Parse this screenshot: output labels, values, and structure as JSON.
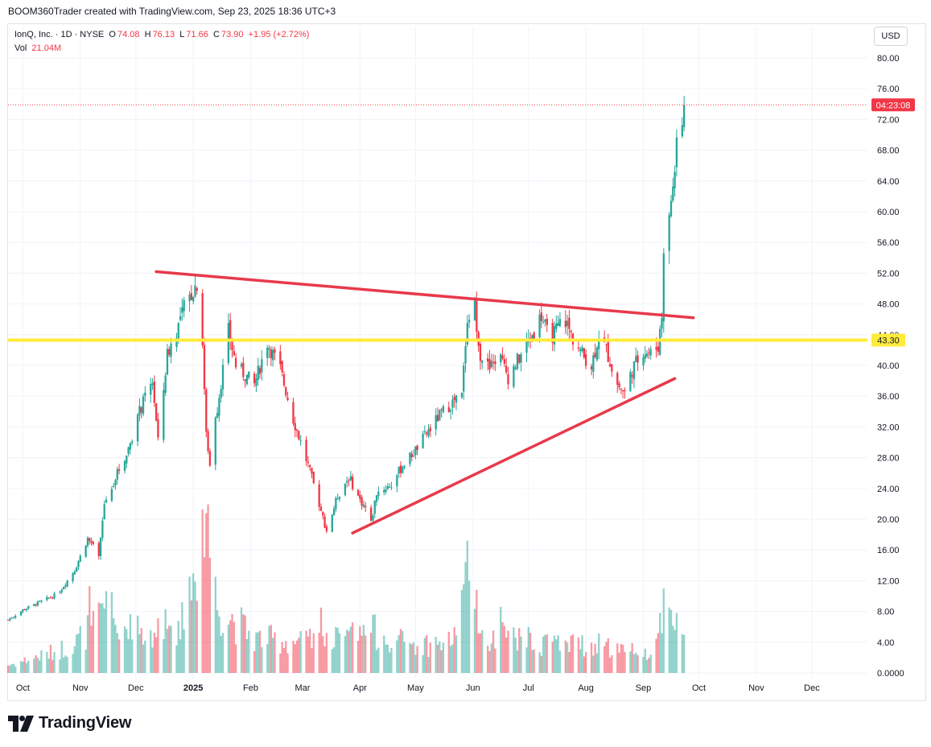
{
  "header": {
    "credit": "BOOM360Trader created with TradingView.com, Sep 23, 2025 18:36 UTC+3"
  },
  "legend": {
    "symbol": "IonQ, Inc. · 1D · NYSE",
    "open_label": "O",
    "open": "74.08",
    "high_label": "H",
    "high": "76.13",
    "low_label": "L",
    "low": "71.66",
    "close_label": "C",
    "close": "73.90",
    "change": "+1.95 (+2.72%)",
    "vol_label": "Vol",
    "vol": "21.04M"
  },
  "currency_button": "USD",
  "brand": {
    "name": "TradingView",
    "logo_icon": "tradingview-logo-icon"
  },
  "colors": {
    "up": "#26a69a",
    "down": "#f23645",
    "level": "#ffeb3b",
    "trendline": "#e8394b"
  },
  "chart_data": {
    "type": "candlestick",
    "symbol": "IonQ, Inc.",
    "interval": "1D",
    "exchange": "NYSE",
    "currency": "USD",
    "y_ticks": [
      "0.0000",
      "4.00",
      "8.00",
      "12.00",
      "16.00",
      "20.00",
      "24.00",
      "28.00",
      "32.00",
      "36.00",
      "40.00",
      "44.00",
      "48.00",
      "52.00",
      "56.00",
      "60.00",
      "64.00",
      "68.00",
      "72.00",
      "76.00",
      "80.00"
    ],
    "ylim": [
      0,
      80
    ],
    "x_ticks": [
      "Oct",
      "Nov",
      "Dec",
      "2025",
      "Feb",
      "Mar",
      "Apr",
      "May",
      "Jun",
      "Jul",
      "Aug",
      "Sep",
      "Oct",
      "Nov",
      "Dec"
    ],
    "x_range": [
      "2024-09-23",
      "2025-12-31"
    ],
    "last_price_label": "04:23:08",
    "last_price": 73.9,
    "horizontal_level": {
      "value": 43.3,
      "label": "43.30"
    },
    "trendlines": [
      {
        "name": "resistance",
        "from": [
          "2024-12-12",
          52.2
        ],
        "to": [
          "2025-09-28",
          46.2
        ]
      },
      {
        "name": "support",
        "from": [
          "2025-03-28",
          18.2
        ],
        "to": [
          "2025-09-18",
          38.3
        ]
      }
    ],
    "price_waypoints": [
      [
        "2024-09-23",
        6.9
      ],
      [
        "2024-10-01",
        8.2
      ],
      [
        "2024-10-10",
        9.2
      ],
      [
        "2024-10-20",
        10.3
      ],
      [
        "2024-10-29",
        13.4
      ],
      [
        "2024-11-05",
        17.5
      ],
      [
        "2024-11-08",
        16.4
      ],
      [
        "2024-11-11",
        15.0
      ],
      [
        "2024-11-14",
        22.0
      ],
      [
        "2024-11-20",
        25.5
      ],
      [
        "2024-11-26",
        28.5
      ],
      [
        "2024-12-03",
        34.0
      ],
      [
        "2024-12-10",
        38.0
      ],
      [
        "2024-12-13",
        30.0
      ],
      [
        "2024-12-18",
        41.5
      ],
      [
        "2024-12-23",
        44.5
      ],
      [
        "2024-12-27",
        47.5
      ],
      [
        "2025-01-03",
        50.8
      ],
      [
        "2025-01-06",
        43.0
      ],
      [
        "2025-01-08",
        31.0
      ],
      [
        "2025-01-10",
        27.5
      ],
      [
        "2025-01-14",
        34.5
      ],
      [
        "2025-01-20",
        44.5
      ],
      [
        "2025-01-24",
        40.0
      ],
      [
        "2025-02-03",
        37.5
      ],
      [
        "2025-02-10",
        43.0
      ],
      [
        "2025-02-17",
        39.5
      ],
      [
        "2025-02-24",
        33.0
      ],
      [
        "2025-03-04",
        27.0
      ],
      [
        "2025-03-10",
        22.0
      ],
      [
        "2025-03-14",
        18.5
      ],
      [
        "2025-03-20",
        23.0
      ],
      [
        "2025-03-26",
        25.5
      ],
      [
        "2025-04-01",
        22.5
      ],
      [
        "2025-04-04",
        21.5
      ],
      [
        "2025-04-07",
        19.5
      ],
      [
        "2025-04-10",
        23.5
      ],
      [
        "2025-04-18",
        24.5
      ],
      [
        "2025-04-24",
        27.0
      ],
      [
        "2025-05-01",
        29.0
      ],
      [
        "2025-05-08",
        31.5
      ],
      [
        "2025-05-14",
        33.5
      ],
      [
        "2025-05-20",
        35.0
      ],
      [
        "2025-05-26",
        36.0
      ],
      [
        "2025-05-29",
        46.5
      ],
      [
        "2025-06-02",
        47.5
      ],
      [
        "2025-06-05",
        41.5
      ],
      [
        "2025-06-10",
        39.5
      ],
      [
        "2025-06-15",
        41.5
      ],
      [
        "2025-06-20",
        38.5
      ],
      [
        "2025-06-26",
        41.0
      ],
      [
        "2025-07-02",
        43.5
      ],
      [
        "2025-07-08",
        46.5
      ],
      [
        "2025-07-12",
        43.5
      ],
      [
        "2025-07-16",
        44.5
      ],
      [
        "2025-07-20",
        46.5
      ],
      [
        "2025-07-24",
        44.0
      ],
      [
        "2025-07-30",
        41.5
      ],
      [
        "2025-08-04",
        40.0
      ],
      [
        "2025-08-08",
        44.0
      ],
      [
        "2025-08-12",
        42.0
      ],
      [
        "2025-08-18",
        37.5
      ],
      [
        "2025-08-22",
        36.5
      ],
      [
        "2025-08-26",
        39.5
      ],
      [
        "2025-09-01",
        42.0
      ],
      [
        "2025-09-05",
        41.5
      ],
      [
        "2025-09-09",
        42.5
      ],
      [
        "2025-09-11",
        46.5
      ],
      [
        "2025-09-12",
        55.5
      ],
      [
        "2025-09-15",
        59.0
      ],
      [
        "2025-09-17",
        64.0
      ],
      [
        "2025-09-19",
        68.0
      ],
      [
        "2025-09-22",
        71.95
      ],
      [
        "2025-09-23",
        73.9
      ]
    ],
    "volume_waypoints": [
      [
        "2024-09-23",
        1.0
      ],
      [
        "2024-10-15",
        2.5
      ],
      [
        "2024-10-29",
        3.8
      ],
      [
        "2024-11-05",
        5.5
      ],
      [
        "2024-11-14",
        9.5
      ],
      [
        "2024-11-25",
        6.0
      ],
      [
        "2024-12-10",
        5.0
      ],
      [
        "2024-12-23",
        6.5
      ],
      [
        "2025-01-08",
        18.0
      ],
      [
        "2025-01-14",
        9.0
      ],
      [
        "2025-02-03",
        4.5
      ],
      [
        "2025-03-04",
        4.0
      ],
      [
        "2025-03-14",
        4.2
      ],
      [
        "2025-04-07",
        5.5
      ],
      [
        "2025-05-01",
        3.5
      ],
      [
        "2025-05-20",
        4.0
      ],
      [
        "2025-05-29",
        11.0
      ],
      [
        "2025-06-10",
        5.0
      ],
      [
        "2025-07-08",
        4.0
      ],
      [
        "2025-08-12",
        3.5
      ],
      [
        "2025-09-05",
        2.5
      ],
      [
        "2025-09-12",
        8.5
      ],
      [
        "2025-09-23",
        5.0
      ]
    ],
    "volume_spikes": [
      [
        "2024-11-06",
        11.3
      ],
      [
        "2024-11-18",
        10.5
      ],
      [
        "2025-01-08",
        20.8
      ],
      [
        "2025-01-10",
        15.0
      ],
      [
        "2025-01-13",
        12.5
      ],
      [
        "2025-03-11",
        8.5
      ],
      [
        "2025-05-29",
        17.2
      ],
      [
        "2025-05-30",
        12.0
      ],
      [
        "2025-06-16",
        8.6
      ],
      [
        "2025-09-12",
        11.0
      ],
      [
        "2025-09-16",
        8.2
      ]
    ]
  }
}
